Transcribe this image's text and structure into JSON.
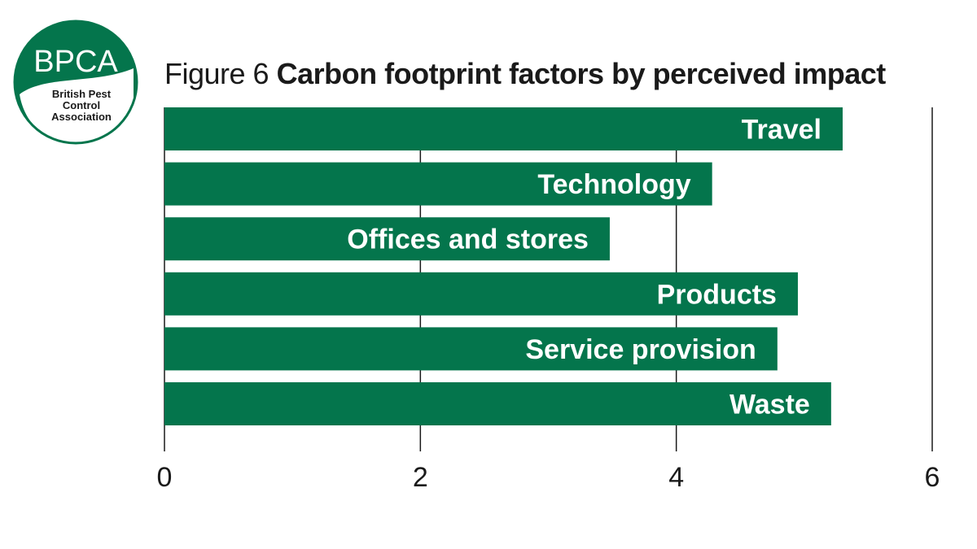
{
  "logo": {
    "acronym": "BPCA",
    "line1": "British Pest",
    "line2": "Control",
    "line3": "Association"
  },
  "title": {
    "prefix": "Figure 6",
    "main": "Carbon footprint factors by perceived impact"
  },
  "colors": {
    "bar": "#04754c",
    "text": "#1a1a1a",
    "label": "#ffffff"
  },
  "chart_data": {
    "type": "bar",
    "orientation": "horizontal",
    "title": "Figure 6 Carbon footprint factors by perceived impact",
    "categories": [
      "Travel",
      "Technology",
      "Offices and stores",
      "Products",
      "Service provision",
      "Waste"
    ],
    "values": [
      5.3,
      4.28,
      3.48,
      4.95,
      4.79,
      5.21
    ],
    "xlim": [
      0,
      6
    ],
    "xticks": [
      0,
      2,
      4,
      6
    ],
    "xlabel": "",
    "ylabel": "",
    "grid": true,
    "labels_inside_bars": true
  }
}
